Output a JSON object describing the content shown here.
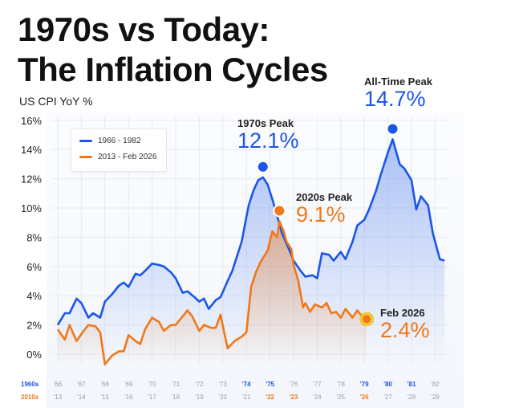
{
  "title_line1": "1970s vs Today:",
  "title_line2": "The Inflation Cycles",
  "colors": {
    "series_1970s": "#1a56e8",
    "series_2020s": "#f07818",
    "highlight": "#f5c21a"
  },
  "chart_data": {
    "type": "line",
    "ylabel": "US CPI YoY %",
    "ylim": [
      -0.5,
      16
    ],
    "yticks": [
      "0%",
      "2%",
      "4%",
      "6%",
      "8%",
      "10%",
      "12%",
      "14%",
      "16%"
    ],
    "grid": true,
    "legend_placement": "top-left",
    "x_row_labels": [
      "1960s",
      "2010s"
    ],
    "xticks_1960s": [
      "'66",
      "'67",
      "'68",
      "'69",
      "'70",
      "'71",
      "'72",
      "'73",
      "'74",
      "'75",
      "'76",
      "'77",
      "'78",
      "'79",
      "'80",
      "'81",
      "'82"
    ],
    "xticks_2010s": [
      "'13",
      "'14",
      "'15",
      "'16",
      "'17",
      "'18",
      "'19",
      "'20",
      "'21",
      "'22",
      "'23",
      "'24",
      "'25",
      "'26",
      "'27",
      "'28",
      "'29"
    ],
    "highlighted_1960s": [
      "'74",
      "'75",
      "'79",
      "'80",
      "'81"
    ],
    "highlighted_2010s": [
      "'22",
      "'23",
      "'26"
    ],
    "series": [
      {
        "name": "1966 - 1982",
        "color": "#1a56e8",
        "x_range": [
          1966,
          1982
        ],
        "points": [
          [
            1966.0,
            2.0
          ],
          [
            1966.3,
            2.8
          ],
          [
            1966.5,
            2.8
          ],
          [
            1966.8,
            3.8
          ],
          [
            1967.0,
            3.5
          ],
          [
            1967.3,
            2.5
          ],
          [
            1967.5,
            2.8
          ],
          [
            1967.8,
            2.5
          ],
          [
            1968.0,
            3.6
          ],
          [
            1968.3,
            4.1
          ],
          [
            1968.6,
            4.7
          ],
          [
            1968.8,
            4.9
          ],
          [
            1969.0,
            4.6
          ],
          [
            1969.3,
            5.5
          ],
          [
            1969.5,
            5.4
          ],
          [
            1969.7,
            5.7
          ],
          [
            1970.0,
            6.2
          ],
          [
            1970.3,
            6.1
          ],
          [
            1970.5,
            6.0
          ],
          [
            1970.8,
            5.6
          ],
          [
            1971.0,
            5.2
          ],
          [
            1971.3,
            4.2
          ],
          [
            1971.5,
            4.3
          ],
          [
            1971.8,
            3.9
          ],
          [
            1972.0,
            3.6
          ],
          [
            1972.2,
            3.8
          ],
          [
            1972.4,
            3.1
          ],
          [
            1972.7,
            3.7
          ],
          [
            1972.9,
            3.9
          ],
          [
            1973.2,
            5.0
          ],
          [
            1973.4,
            5.7
          ],
          [
            1973.8,
            7.7
          ],
          [
            1974.0,
            9.4
          ],
          [
            1974.1,
            10.2
          ],
          [
            1974.3,
            11.2
          ],
          [
            1974.5,
            11.9
          ],
          [
            1974.7,
            12.1
          ],
          [
            1974.9,
            11.6
          ],
          [
            1975.1,
            10.6
          ],
          [
            1975.3,
            9.5
          ],
          [
            1975.5,
            8.3
          ],
          [
            1975.8,
            7.2
          ],
          [
            1976.0,
            6.4
          ],
          [
            1976.3,
            5.7
          ],
          [
            1976.5,
            5.3
          ],
          [
            1976.8,
            5.4
          ],
          [
            1977.0,
            5.2
          ],
          [
            1977.2,
            6.9
          ],
          [
            1977.5,
            6.8
          ],
          [
            1977.7,
            6.4
          ],
          [
            1978.0,
            7.0
          ],
          [
            1978.2,
            6.5
          ],
          [
            1978.5,
            7.7
          ],
          [
            1978.7,
            8.8
          ],
          [
            1979.0,
            9.2
          ],
          [
            1979.2,
            9.9
          ],
          [
            1979.5,
            11.2
          ],
          [
            1979.7,
            12.3
          ],
          [
            1980.0,
            13.8
          ],
          [
            1980.2,
            14.7
          ],
          [
            1980.5,
            13.0
          ],
          [
            1980.7,
            12.7
          ],
          [
            1981.0,
            11.9
          ],
          [
            1981.2,
            9.9
          ],
          [
            1981.4,
            10.8
          ],
          [
            1981.7,
            10.2
          ],
          [
            1981.9,
            8.3
          ],
          [
            1982.2,
            6.5
          ],
          [
            1982.4,
            6.4
          ]
        ]
      },
      {
        "name": "2013 - Feb 2026",
        "color": "#f07818",
        "x_range": [
          2013,
          2029
        ],
        "points": [
          [
            2013.0,
            1.7
          ],
          [
            2013.3,
            1.0
          ],
          [
            2013.5,
            2.0
          ],
          [
            2013.8,
            0.9
          ],
          [
            2014.1,
            1.6
          ],
          [
            2014.3,
            2.0
          ],
          [
            2014.6,
            1.9
          ],
          [
            2014.8,
            1.5
          ],
          [
            2015.0,
            -0.7
          ],
          [
            2015.3,
            -0.1
          ],
          [
            2015.6,
            0.2
          ],
          [
            2015.8,
            0.2
          ],
          [
            2016.0,
            1.3
          ],
          [
            2016.3,
            0.9
          ],
          [
            2016.5,
            0.7
          ],
          [
            2016.7,
            1.7
          ],
          [
            2017.0,
            2.5
          ],
          [
            2017.3,
            2.2
          ],
          [
            2017.5,
            1.6
          ],
          [
            2017.8,
            2.0
          ],
          [
            2018.0,
            2.0
          ],
          [
            2018.2,
            2.4
          ],
          [
            2018.5,
            3.0
          ],
          [
            2018.7,
            2.6
          ],
          [
            2019.0,
            1.6
          ],
          [
            2019.2,
            2.0
          ],
          [
            2019.5,
            1.8
          ],
          [
            2019.7,
            1.8
          ],
          [
            2019.9,
            2.7
          ],
          [
            2020.2,
            0.4
          ],
          [
            2020.5,
            0.9
          ],
          [
            2020.8,
            1.2
          ],
          [
            2021.0,
            1.5
          ],
          [
            2021.2,
            4.6
          ],
          [
            2021.4,
            5.6
          ],
          [
            2021.6,
            6.3
          ],
          [
            2021.9,
            7.1
          ],
          [
            2022.1,
            8.4
          ],
          [
            2022.3,
            8.0
          ],
          [
            2022.4,
            9.1
          ],
          [
            2022.6,
            8.3
          ],
          [
            2022.7,
            7.7
          ],
          [
            2022.9,
            7.2
          ],
          [
            2023.0,
            6.1
          ],
          [
            2023.2,
            5.0
          ],
          [
            2023.4,
            3.2
          ],
          [
            2023.5,
            3.5
          ],
          [
            2023.7,
            2.9
          ],
          [
            2023.9,
            3.4
          ],
          [
            2024.2,
            3.2
          ],
          [
            2024.4,
            3.5
          ],
          [
            2024.6,
            2.8
          ],
          [
            2024.8,
            2.9
          ],
          [
            2025.0,
            2.5
          ],
          [
            2025.2,
            3.1
          ],
          [
            2025.5,
            2.5
          ],
          [
            2025.7,
            3.0
          ],
          [
            2025.9,
            2.6
          ],
          [
            2026.1,
            2.4
          ]
        ]
      }
    ],
    "annotations": [
      {
        "label": "1970s Peak",
        "value": "12.1%",
        "x": 1974.7,
        "y": 12.1,
        "series": 0
      },
      {
        "label": "All-Time Peak",
        "value": "14.7%",
        "x": 1980.2,
        "y": 14.7,
        "series": 0
      },
      {
        "label": "2020s Peak",
        "value": "9.1%",
        "x": 2022.4,
        "y": 9.1,
        "series": 1
      },
      {
        "label": "Feb 2026",
        "value": "2.4%",
        "x": 2026.1,
        "y": 2.4,
        "series": 1
      }
    ]
  }
}
